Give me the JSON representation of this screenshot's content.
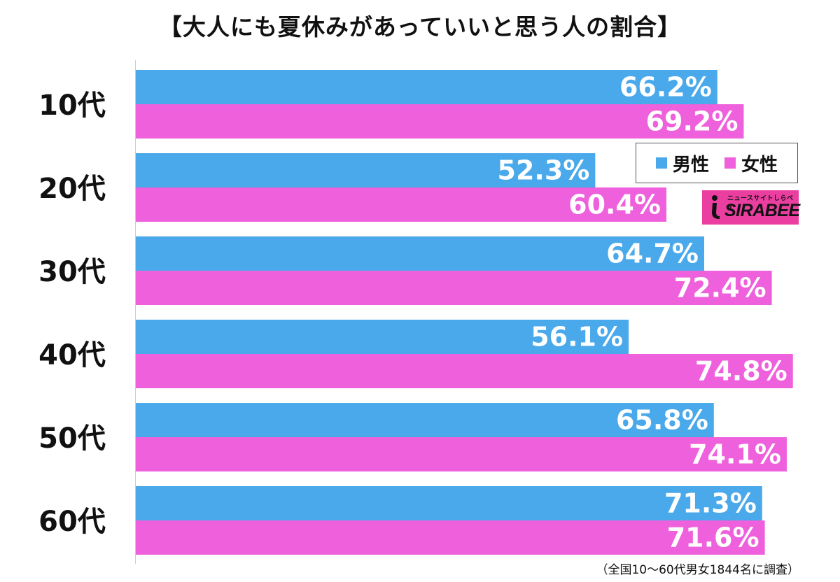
{
  "chart_data": {
    "type": "bar",
    "orientation": "horizontal",
    "title": "【大人にも夏休みがあっていいと思う人の割合】",
    "categories": [
      "10代",
      "20代",
      "30代",
      "40代",
      "50代",
      "60代"
    ],
    "series": [
      {
        "name": "男性",
        "color": "#4aa9ea",
        "values": [
          66.2,
          52.3,
          64.7,
          56.1,
          65.8,
          71.3
        ],
        "labels": [
          "66.2%",
          "52.3%",
          "64.7%",
          "56.1%",
          "65.8%",
          "71.3%"
        ]
      },
      {
        "name": "女性",
        "color": "#ee60dc",
        "values": [
          69.2,
          60.4,
          72.4,
          74.8,
          74.1,
          71.6
        ],
        "labels": [
          "69.2%",
          "60.4%",
          "72.4%",
          "74.8%",
          "74.1%",
          "71.6%"
        ]
      }
    ],
    "xlim": [
      0,
      100
    ],
    "xlabel": "",
    "ylabel": "",
    "grid": false,
    "legend_position": "right",
    "note": "（全国10〜60代男女1844名に調査）"
  },
  "logo": {
    "subtitle": "ニュースサイトしらべぇ",
    "name": "SIRABEE",
    "color": "#ea3fa0"
  }
}
